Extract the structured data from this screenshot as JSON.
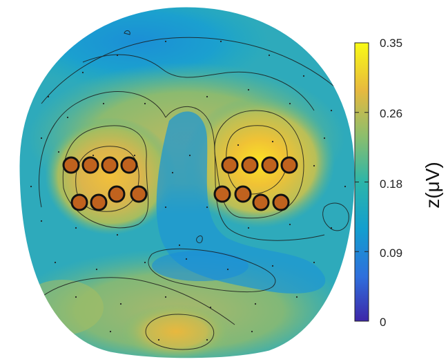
{
  "chart_data": {
    "type": "heatmap",
    "title": "",
    "colorbar": {
      "label": "z(μV)",
      "ticks": [
        "0.35",
        "0.26",
        "0.18",
        "0.09",
        "0"
      ],
      "range": [
        0,
        0.35
      ],
      "colormap": [
        "#3d26a8",
        "#2f6fdc",
        "#139ecf",
        "#2cb5a9",
        "#89be6e",
        "#e7b93e",
        "#f9fb15"
      ]
    },
    "grid": false,
    "electrode_clusters": [
      {
        "name": "left",
        "count": 8
      },
      {
        "name": "right",
        "count": 8
      }
    ],
    "electrode_color": "#c0621e"
  }
}
